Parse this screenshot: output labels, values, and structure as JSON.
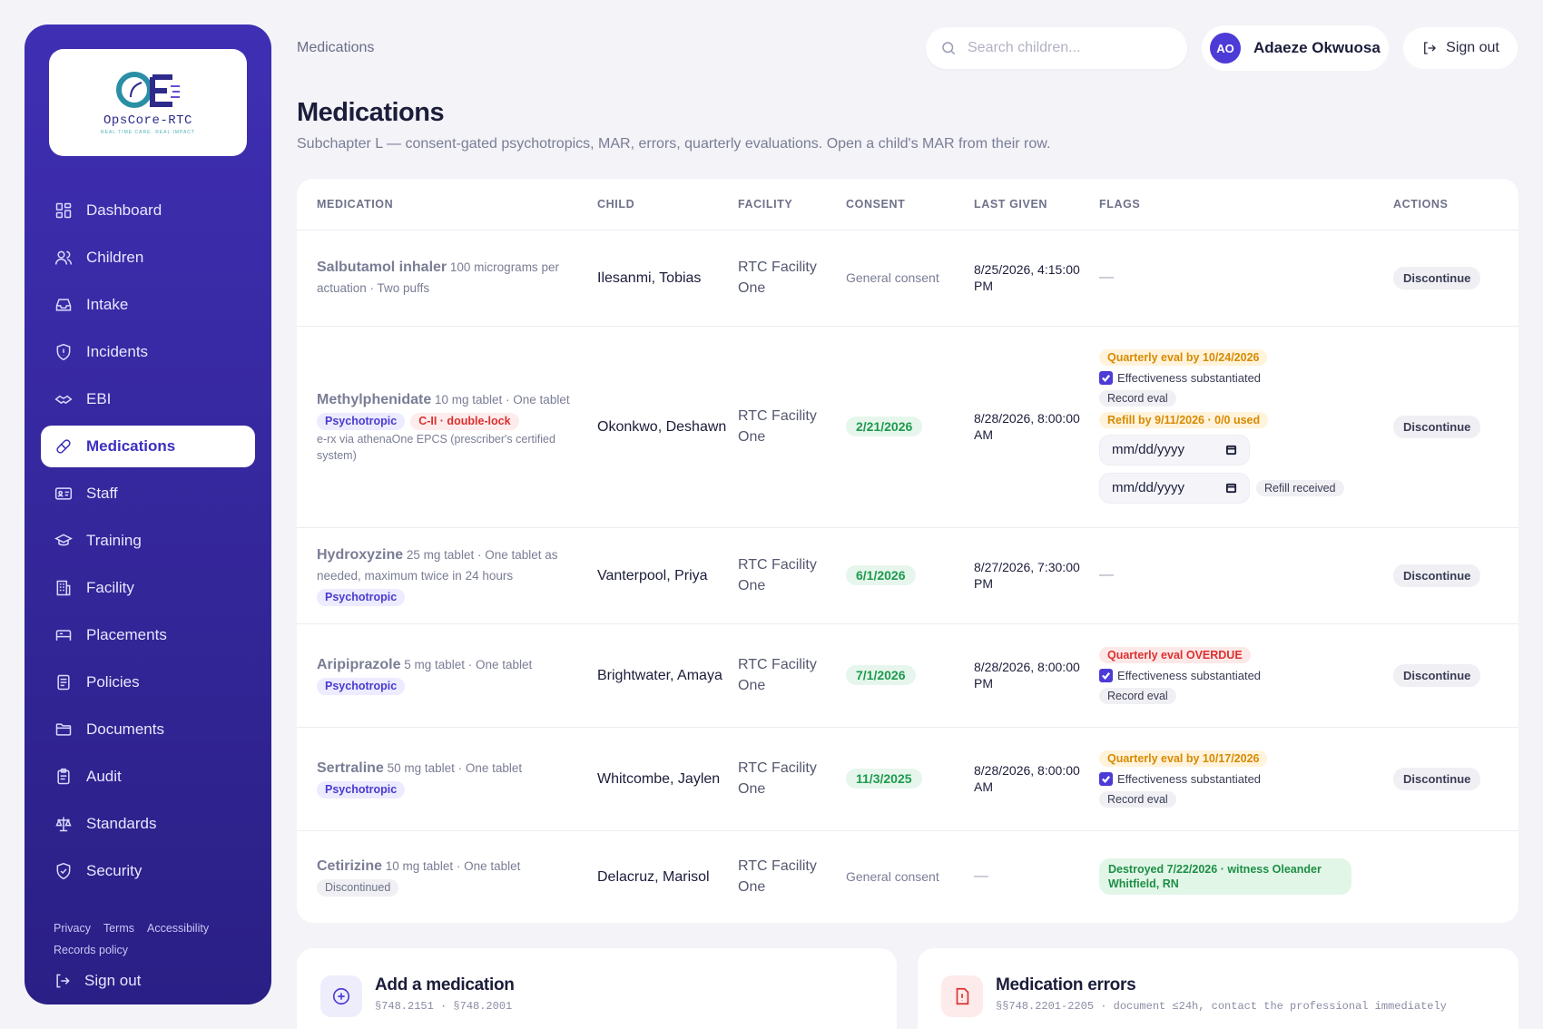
{
  "brand": {
    "name": "OpsCore-RTC",
    "tagline": "REAL TIME CARE. REAL IMPACT"
  },
  "nav": [
    {
      "label": "Dashboard",
      "icon": "grid-icon"
    },
    {
      "label": "Children",
      "icon": "users-icon"
    },
    {
      "label": "Intake",
      "icon": "inbox-icon"
    },
    {
      "label": "Incidents",
      "icon": "alert-shield-icon"
    },
    {
      "label": "EBI",
      "icon": "handshake-icon"
    },
    {
      "label": "Medications",
      "icon": "pill-icon",
      "active": true
    },
    {
      "label": "Staff",
      "icon": "id-card-icon"
    },
    {
      "label": "Training",
      "icon": "graduation-cap-icon"
    },
    {
      "label": "Facility",
      "icon": "building-icon"
    },
    {
      "label": "Placements",
      "icon": "bed-icon"
    },
    {
      "label": "Policies",
      "icon": "document-icon"
    },
    {
      "label": "Documents",
      "icon": "folder-icon"
    },
    {
      "label": "Audit",
      "icon": "clipboard-icon"
    },
    {
      "label": "Standards",
      "icon": "scale-icon"
    },
    {
      "label": "Security",
      "icon": "shield-check-icon"
    }
  ],
  "legal": {
    "privacy": "Privacy",
    "terms": "Terms",
    "accessibility": "Accessibility",
    "records": "Records policy"
  },
  "sidebar_signout": "Sign out",
  "header": {
    "breadcrumb": "Medications",
    "search_placeholder": "Search children...",
    "user_initials": "AO",
    "user_name": "Adaeze Okwuosa",
    "signout": "Sign out"
  },
  "page": {
    "title": "Medications",
    "subtitle": "Subchapter L — consent-gated psychotropics, MAR, errors, quarterly evaluations. Open a child's MAR from their row."
  },
  "table": {
    "columns": [
      "MEDICATION",
      "CHILD",
      "FACILITY",
      "CONSENT",
      "LAST GIVEN",
      "FLAGS",
      "ACTIONS"
    ],
    "rows": [
      {
        "name": "Salbutamol inhaler",
        "detail": "100 micrograms per actuation · Two puffs",
        "child": "Ilesanmi, Tobias",
        "facility": "RTC Facility One",
        "consent": "General consent",
        "last_given": "8/25/2026, 4:15:00 PM",
        "flag_dash": "—",
        "action": "Discontinue"
      },
      {
        "name": "Methylphenidate",
        "detail": "10 mg tablet · One tablet",
        "badge": "Psychotropic",
        "badge2": "C-II · double-lock",
        "extra": "e-rx via athenaOne EPCS (prescriber's certified system)",
        "child": "Okonkwo, Deshawn",
        "facility": "RTC Facility One",
        "consent": "2/21/2026",
        "last_given": "8/28/2026, 8:00:00 AM",
        "flag_eval": "Quarterly eval by 10/24/2026",
        "flag_check": "Effectiveness substantiated",
        "flag_record": "Record eval",
        "flag_refill": "Refill by 9/11/2026 · 0/0 used",
        "date_ph1": "mm/dd/yyyy",
        "date_ph2": "mm/dd/yyyy",
        "refill_btn": "Refill received",
        "action": "Discontinue"
      },
      {
        "name": "Hydroxyzine",
        "detail": "25 mg tablet · One tablet as needed, maximum twice in 24 hours",
        "badge": "Psychotropic",
        "child": "Vanterpool, Priya",
        "facility": "RTC Facility One",
        "consent": "6/1/2026",
        "last_given": "8/27/2026, 7:30:00 PM",
        "flag_dash": "—",
        "action": "Discontinue"
      },
      {
        "name": "Aripiprazole",
        "detail": "5 mg tablet · One tablet",
        "badge": "Psychotropic",
        "child": "Brightwater, Amaya",
        "facility": "RTC Facility One",
        "consent": "7/1/2026",
        "last_given": "8/28/2026, 8:00:00 PM",
        "flag_eval": "Quarterly eval OVERDUE",
        "flag_check": "Effectiveness substantiated",
        "flag_record": "Record eval",
        "action": "Discontinue"
      },
      {
        "name": "Sertraline",
        "detail": "50 mg tablet · One tablet",
        "badge": "Psychotropic",
        "child": "Whitcombe, Jaylen",
        "facility": "RTC Facility One",
        "consent": "11/3/2025",
        "last_given": "8/28/2026, 8:00:00 AM",
        "flag_eval": "Quarterly eval by 10/17/2026",
        "flag_check": "Effectiveness substantiated",
        "flag_record": "Record eval",
        "action": "Discontinue"
      },
      {
        "name": "Cetirizine",
        "detail": "10 mg tablet · One tablet",
        "badge": "Discontinued",
        "child": "Delacruz, Marisol",
        "facility": "RTC Facility One",
        "consent": "General consent",
        "last_given": "—",
        "flag_destroyed": "Destroyed 7/22/2026 · witness Oleander Whitfield, RN"
      }
    ]
  },
  "cards": {
    "add": {
      "title": "Add a medication",
      "sub": "§748.2151 · §748.2001"
    },
    "errors": {
      "title": "Medication errors",
      "sub": "§§748.2201-2205 · document ≤24h, contact the professional immediately"
    }
  }
}
